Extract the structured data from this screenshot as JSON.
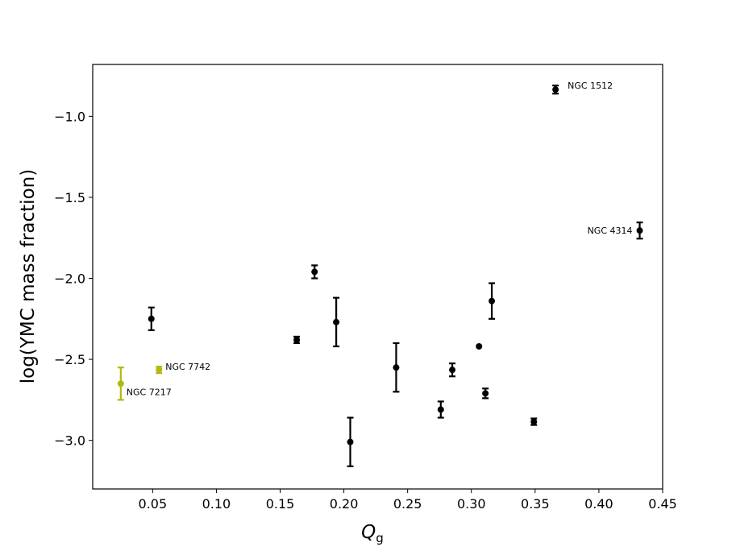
{
  "chart_data": {
    "type": "scatter",
    "xlabel": "Q",
    "xlabel_subscript": "g",
    "ylabel": "log(YMC mass fraction)",
    "xlim": [
      0.003,
      0.45
    ],
    "ylim": [
      -3.3,
      -0.68
    ],
    "xticks": [
      0.05,
      0.1,
      0.15,
      0.2,
      0.25,
      0.3,
      0.35,
      0.4,
      0.45
    ],
    "xtick_labels": [
      "0.05",
      "0.10",
      "0.15",
      "0.20",
      "0.25",
      "0.30",
      "0.35",
      "0.40",
      "0.45"
    ],
    "yticks": [
      -1.0,
      -1.5,
      -2.0,
      -2.5,
      -3.0
    ],
    "ytick_labels": [
      "−1.0",
      "−1.5",
      "−2.0",
      "−2.5",
      "−3.0"
    ],
    "grid": false,
    "colors": {
      "main": "#000000",
      "highlight": "#b5b80c"
    },
    "points": [
      {
        "x": 0.025,
        "y": -2.65,
        "err": 0.1,
        "color": "highlight",
        "label": "NGC 7217",
        "label_pos": "right-below"
      },
      {
        "x": 0.055,
        "y": -2.565,
        "err": 0.02,
        "color": "highlight",
        "label": "NGC 7742",
        "label_pos": "right-above"
      },
      {
        "x": 0.049,
        "y": -2.25,
        "err": 0.07,
        "color": "main"
      },
      {
        "x": 0.163,
        "y": -2.38,
        "err": 0.02,
        "color": "main"
      },
      {
        "x": 0.177,
        "y": -1.96,
        "err": 0.04,
        "color": "main"
      },
      {
        "x": 0.194,
        "y": -2.27,
        "err": 0.15,
        "color": "main"
      },
      {
        "x": 0.205,
        "y": -3.01,
        "err": 0.15,
        "color": "main"
      },
      {
        "x": 0.241,
        "y": -2.55,
        "err": 0.15,
        "color": "main"
      },
      {
        "x": 0.276,
        "y": -2.81,
        "err": 0.05,
        "color": "main"
      },
      {
        "x": 0.285,
        "y": -2.565,
        "err": 0.04,
        "color": "main"
      },
      {
        "x": 0.306,
        "y": -2.42,
        "err": 0.0,
        "color": "main"
      },
      {
        "x": 0.311,
        "y": -2.71,
        "err": 0.03,
        "color": "main"
      },
      {
        "x": 0.316,
        "y": -2.14,
        "err": 0.11,
        "color": "main"
      },
      {
        "x": 0.349,
        "y": -2.885,
        "err": 0.02,
        "color": "main"
      },
      {
        "x": 0.366,
        "y": -0.835,
        "err": 0.025,
        "color": "main",
        "label": "NGC 1512",
        "label_pos": "right"
      },
      {
        "x": 0.432,
        "y": -1.705,
        "err": 0.05,
        "color": "main",
        "label": "NGC 4314",
        "label_pos": "left"
      }
    ]
  }
}
